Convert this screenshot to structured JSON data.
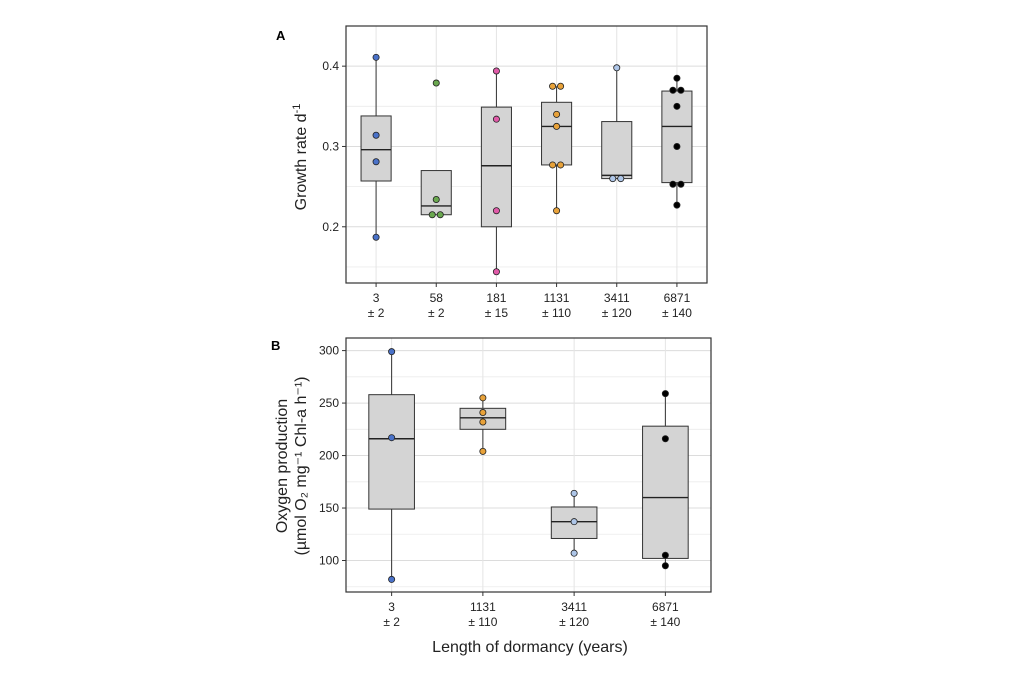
{
  "chart_data": [
    {
      "type": "box",
      "panel_label": "A",
      "ylabel": "Growth rate d",
      "ylabel_sup": "-1",
      "ylim": [
        0.13,
        0.45
      ],
      "yticks": [
        "0.2",
        "0.3",
        "0.4"
      ],
      "ytick_values": [
        0.2,
        0.3,
        0.4
      ],
      "categories": [
        {
          "line1": "3",
          "line2": "± 2"
        },
        {
          "line1": "58",
          "line2": "± 2"
        },
        {
          "line1": "181",
          "line2": "± 15"
        },
        {
          "line1": "1131",
          "line2": "± 110"
        },
        {
          "line1": "3411",
          "line2": "± 120"
        },
        {
          "line1": "6871",
          "line2": "± 140"
        }
      ],
      "boxes": [
        {
          "q1": 0.257,
          "median": 0.296,
          "q3": 0.338,
          "whisker_low": 0.187,
          "whisker_high": 0.411,
          "color": "#4a72c9",
          "points": [
            0.411,
            0.314,
            0.281,
            0.187
          ]
        },
        {
          "q1": 0.215,
          "median": 0.226,
          "q3": 0.27,
          "whisker_low": 0.215,
          "whisker_high": 0.27,
          "color": "#6aa84f",
          "points": [
            0.379,
            0.234,
            0.215,
            0.215
          ]
        },
        {
          "q1": 0.2,
          "median": 0.276,
          "q3": 0.349,
          "whisker_low": 0.144,
          "whisker_high": 0.394,
          "color": "#e05aa8",
          "points": [
            0.394,
            0.334,
            0.22,
            0.144
          ]
        },
        {
          "q1": 0.277,
          "median": 0.325,
          "q3": 0.355,
          "whisker_low": 0.22,
          "whisker_high": 0.375,
          "color": "#e8a23a",
          "points": [
            0.375,
            0.375,
            0.34,
            0.325,
            0.277,
            0.277,
            0.22
          ]
        },
        {
          "q1": 0.26,
          "median": 0.264,
          "q3": 0.331,
          "whisker_low": 0.26,
          "whisker_high": 0.398,
          "color": "#aec6e8",
          "points": [
            0.398,
            0.26,
            0.26
          ]
        },
        {
          "q1": 0.255,
          "median": 0.325,
          "q3": 0.369,
          "whisker_low": 0.227,
          "whisker_high": 0.385,
          "color": "#000000",
          "points": [
            0.385,
            0.37,
            0.37,
            0.35,
            0.3,
            0.253,
            0.253,
            0.227
          ]
        }
      ]
    },
    {
      "type": "box",
      "panel_label": "B",
      "ylabel_line1": "Oxygen production",
      "ylabel_line2": "(µmol O₂ mg⁻¹ Chl-a h⁻¹)",
      "xlabel": "Length of dormancy (years)",
      "ylim": [
        70,
        312
      ],
      "yticks": [
        "100",
        "150",
        "200",
        "250",
        "300"
      ],
      "ytick_values": [
        100,
        150,
        200,
        250,
        300
      ],
      "categories": [
        {
          "line1": "3",
          "line2": "± 2"
        },
        {
          "line1": "1131",
          "line2": "± 110"
        },
        {
          "line1": "3411",
          "line2": "± 120"
        },
        {
          "line1": "6871",
          "line2": "± 140"
        }
      ],
      "boxes": [
        {
          "q1": 149,
          "median": 216,
          "q3": 258,
          "whisker_low": 82,
          "whisker_high": 299,
          "color": "#4a72c9",
          "points": [
            299,
            217,
            82
          ]
        },
        {
          "q1": 225,
          "median": 236,
          "q3": 245,
          "whisker_low": 204,
          "whisker_high": 255,
          "color": "#e8a23a",
          "points": [
            255,
            241,
            232,
            204
          ]
        },
        {
          "q1": 121,
          "median": 137,
          "q3": 151,
          "whisker_low": 107,
          "whisker_high": 164,
          "color": "#aec6e8",
          "points": [
            164,
            137,
            107
          ]
        },
        {
          "q1": 102,
          "median": 160,
          "q3": 228,
          "whisker_low": 95,
          "whisker_high": 259,
          "color": "#000000",
          "points": [
            259,
            216,
            105,
            95
          ]
        }
      ]
    }
  ]
}
